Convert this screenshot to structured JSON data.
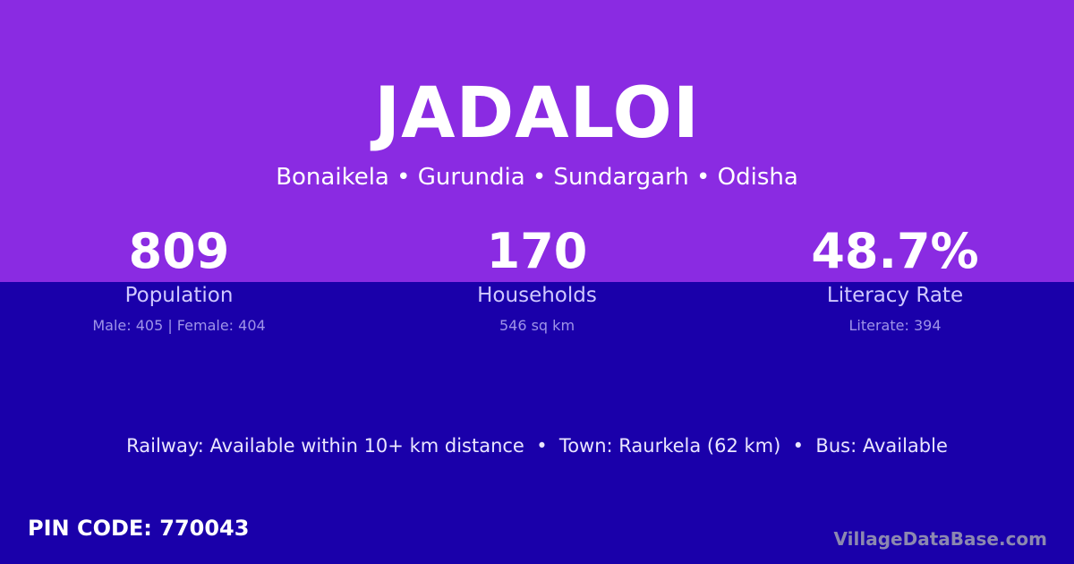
{
  "title": "JADALOI",
  "location": "Bonaikela • Gurundia • Sundargarh • Odisha",
  "stats": [
    {
      "value": "809",
      "label": "Population",
      "sub": "Male: 405 | Female: 404"
    },
    {
      "value": "170",
      "label": "Households",
      "sub": "546 sq km"
    },
    {
      "value": "48.7%",
      "label": "Literacy Rate",
      "sub": "Literate: 394"
    }
  ],
  "transport": "Railway: Available within 10+ km distance  •  Town: Raurkela (62 km)  •  Bus: Available",
  "pin": "PIN CODE: 770043",
  "brand": "VillageDataBase.com",
  "colors": {
    "top": "#8a2be2",
    "bottom": "#1a00aa"
  }
}
